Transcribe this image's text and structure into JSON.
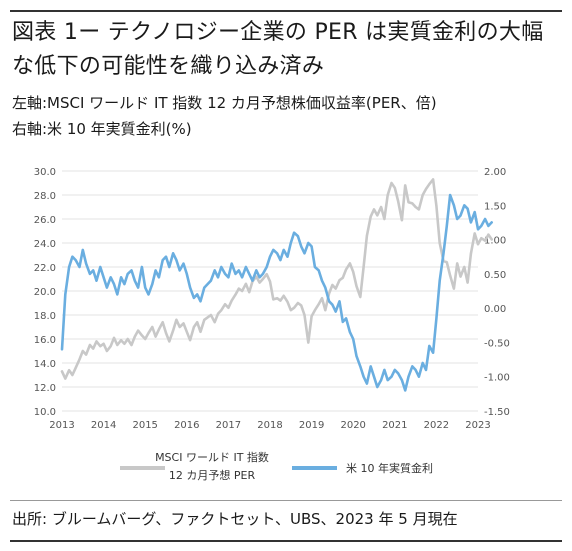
{
  "header": {
    "title": "図表 1ー テクノロジー企業の PER は実質金利の大幅な低下の可能性を織り込み済み",
    "left_axis_note": "左軸:MSCI ワールド IT 指数 12 カ月予想株価収益率(PER、倍)",
    "right_axis_note": "右軸:米 10 年実質金利(%)"
  },
  "source": "出所: ブルームバーグ、ファクトセット、UBS、2023 年 5 月現在",
  "colors": {
    "per_series": "#c8c8c8",
    "rate_series": "#6aaee0",
    "grid": "#e3e3e3",
    "axis_text": "#555555"
  },
  "chart_data": {
    "type": "line",
    "x_ticks": [
      "2013",
      "2014",
      "2015",
      "2016",
      "2017",
      "2018",
      "2019",
      "2020",
      "2021",
      "2022",
      "2023"
    ],
    "x_range": [
      2013.0,
      2023.0
    ],
    "ylim_left": [
      10.0,
      30.0
    ],
    "yticks_left": [
      "10.0",
      "12.0",
      "14.0",
      "16.0",
      "18.0",
      "20.0",
      "22.0",
      "24.0",
      "26.0",
      "28.0",
      "30.0"
    ],
    "ylim_right": [
      -1.5,
      2.0
    ],
    "yticks_right": [
      "-1.50",
      "-1.00",
      "-0.50",
      "0.00",
      "0.50",
      "1.00",
      "1.50",
      "2.00"
    ],
    "grid": true,
    "legend": {
      "per_label_line1": "MSCI ワールド IT 指数",
      "per_label_line2": "12 カ月予想 PER",
      "rate_label": "米 10 年実質金利"
    },
    "series": [
      {
        "name": "MSCI ワールド IT 指数 12 カ月予想 PER",
        "axis": "left",
        "x": [
          2013.0,
          2013.08,
          2013.17,
          2013.25,
          2013.33,
          2013.42,
          2013.5,
          2013.58,
          2013.67,
          2013.75,
          2013.83,
          2013.92,
          2014.0,
          2014.08,
          2014.17,
          2014.25,
          2014.33,
          2014.42,
          2014.5,
          2014.58,
          2014.67,
          2014.75,
          2014.83,
          2014.92,
          2015.0,
          2015.08,
          2015.17,
          2015.25,
          2015.33,
          2015.42,
          2015.5,
          2015.58,
          2015.67,
          2015.75,
          2015.83,
          2015.92,
          2016.0,
          2016.08,
          2016.17,
          2016.25,
          2016.33,
          2016.42,
          2016.5,
          2016.58,
          2016.67,
          2016.75,
          2016.83,
          2016.92,
          2017.0,
          2017.08,
          2017.17,
          2017.25,
          2017.33,
          2017.42,
          2017.5,
          2017.58,
          2017.67,
          2017.75,
          2017.83,
          2017.92,
          2018.0,
          2018.08,
          2018.17,
          2018.25,
          2018.33,
          2018.42,
          2018.5,
          2018.58,
          2018.67,
          2018.75,
          2018.83,
          2018.92,
          2019.0,
          2019.08,
          2019.17,
          2019.25,
          2019.33,
          2019.42,
          2019.5,
          2019.58,
          2019.67,
          2019.75,
          2019.83,
          2019.92,
          2020.0,
          2020.08,
          2020.17,
          2020.25,
          2020.33,
          2020.42,
          2020.5,
          2020.58,
          2020.67,
          2020.75,
          2020.83,
          2020.92,
          2021.0,
          2021.08,
          2021.17,
          2021.25,
          2021.33,
          2021.42,
          2021.5,
          2021.58,
          2021.67,
          2021.75,
          2021.83,
          2021.92,
          2022.0,
          2022.08,
          2022.17,
          2022.25,
          2022.33,
          2022.42,
          2022.5,
          2022.58,
          2022.67,
          2022.75,
          2022.83,
          2022.92,
          2023.0,
          2023.08,
          2023.17,
          2023.25,
          2023.33
        ],
        "values": [
          13.3,
          12.7,
          13.4,
          13.0,
          13.6,
          14.3,
          15.0,
          14.7,
          15.5,
          15.2,
          15.8,
          15.4,
          15.6,
          15.0,
          15.4,
          16.1,
          15.5,
          15.9,
          15.6,
          16.0,
          15.5,
          16.2,
          16.7,
          16.3,
          16.0,
          16.5,
          17.0,
          16.2,
          16.8,
          17.4,
          16.5,
          15.8,
          16.7,
          17.6,
          17.0,
          17.3,
          16.6,
          15.9,
          17.0,
          17.4,
          16.6,
          17.6,
          17.8,
          18.0,
          17.4,
          18.1,
          18.4,
          18.9,
          18.6,
          19.2,
          19.7,
          20.2,
          20.0,
          20.6,
          19.9,
          20.8,
          21.2,
          20.7,
          21.0,
          21.4,
          20.8,
          19.3,
          19.4,
          19.2,
          19.6,
          19.1,
          18.4,
          18.6,
          19.0,
          18.8,
          18.0,
          15.7,
          17.9,
          18.4,
          18.9,
          19.4,
          18.4,
          19.8,
          20.5,
          20.2,
          20.9,
          21.1,
          21.8,
          22.3,
          21.6,
          20.4,
          19.5,
          22.0,
          24.6,
          26.2,
          26.8,
          26.3,
          27.0,
          26.0,
          28.0,
          29.0,
          28.6,
          27.5,
          25.9,
          28.8,
          27.4,
          27.3,
          27.0,
          26.8,
          28.0,
          28.5,
          28.9,
          29.3,
          27.1,
          24.0,
          22.5,
          22.4,
          21.3,
          20.2,
          22.3,
          21.2,
          22.0,
          20.7,
          23.1,
          24.8,
          23.9,
          24.4,
          24.2,
          24.7,
          24.3
        ]
      },
      {
        "name": "米 10 年実質金利",
        "axis": "right",
        "x": [
          2013.0,
          2013.08,
          2013.17,
          2013.25,
          2013.33,
          2013.42,
          2013.5,
          2013.58,
          2013.67,
          2013.75,
          2013.83,
          2013.92,
          2014.0,
          2014.08,
          2014.17,
          2014.25,
          2014.33,
          2014.42,
          2014.5,
          2014.58,
          2014.67,
          2014.75,
          2014.83,
          2014.92,
          2015.0,
          2015.08,
          2015.17,
          2015.25,
          2015.33,
          2015.42,
          2015.5,
          2015.58,
          2015.67,
          2015.75,
          2015.83,
          2015.92,
          2016.0,
          2016.08,
          2016.17,
          2016.25,
          2016.33,
          2016.42,
          2016.5,
          2016.58,
          2016.67,
          2016.75,
          2016.83,
          2016.92,
          2017.0,
          2017.08,
          2017.17,
          2017.25,
          2017.33,
          2017.42,
          2017.5,
          2017.58,
          2017.67,
          2017.75,
          2017.83,
          2017.92,
          2018.0,
          2018.08,
          2018.17,
          2018.25,
          2018.33,
          2018.42,
          2018.5,
          2018.58,
          2018.67,
          2018.75,
          2018.83,
          2018.92,
          2019.0,
          2019.08,
          2019.17,
          2019.25,
          2019.33,
          2019.42,
          2019.5,
          2019.58,
          2019.67,
          2019.75,
          2019.83,
          2019.92,
          2020.0,
          2020.08,
          2020.17,
          2020.25,
          2020.33,
          2020.42,
          2020.5,
          2020.58,
          2020.67,
          2020.75,
          2020.83,
          2020.92,
          2021.0,
          2021.08,
          2021.17,
          2021.25,
          2021.33,
          2021.42,
          2021.5,
          2021.58,
          2021.67,
          2021.75,
          2021.83,
          2021.92,
          2022.0,
          2022.08,
          2022.17,
          2022.25,
          2022.33,
          2022.42,
          2022.5,
          2022.58,
          2022.67,
          2022.75,
          2022.83,
          2022.92,
          2023.0,
          2023.08,
          2023.17,
          2023.25,
          2023.33
        ],
        "values": [
          -0.6,
          0.2,
          0.6,
          0.75,
          0.7,
          0.6,
          0.85,
          0.65,
          0.5,
          0.55,
          0.4,
          0.6,
          0.45,
          0.3,
          0.45,
          0.35,
          0.2,
          0.45,
          0.35,
          0.5,
          0.55,
          0.4,
          0.3,
          0.6,
          0.3,
          0.2,
          0.35,
          0.55,
          0.45,
          0.7,
          0.75,
          0.6,
          0.8,
          0.7,
          0.55,
          0.65,
          0.5,
          0.3,
          0.15,
          0.2,
          0.1,
          0.3,
          0.35,
          0.4,
          0.55,
          0.45,
          0.6,
          0.5,
          0.45,
          0.65,
          0.5,
          0.55,
          0.45,
          0.6,
          0.5,
          0.4,
          0.55,
          0.45,
          0.5,
          0.6,
          0.75,
          0.85,
          0.8,
          0.7,
          0.85,
          0.75,
          0.95,
          1.1,
          1.05,
          0.9,
          0.8,
          0.95,
          0.9,
          0.6,
          0.55,
          0.4,
          0.3,
          0.1,
          0.05,
          -0.05,
          0.1,
          -0.2,
          -0.15,
          -0.35,
          -0.45,
          -0.7,
          -0.85,
          -1.0,
          -1.1,
          -0.85,
          -1.0,
          -1.15,
          -1.05,
          -0.9,
          -1.05,
          -1.0,
          -0.9,
          -0.95,
          -1.05,
          -1.2,
          -1.0,
          -0.85,
          -0.9,
          -1.0,
          -0.8,
          -0.9,
          -0.55,
          -0.65,
          -0.15,
          0.4,
          0.8,
          1.2,
          1.65,
          1.5,
          1.3,
          1.35,
          1.5,
          1.45,
          1.25,
          1.4,
          1.15,
          1.2,
          1.3,
          1.2,
          1.25
        ]
      }
    ]
  }
}
